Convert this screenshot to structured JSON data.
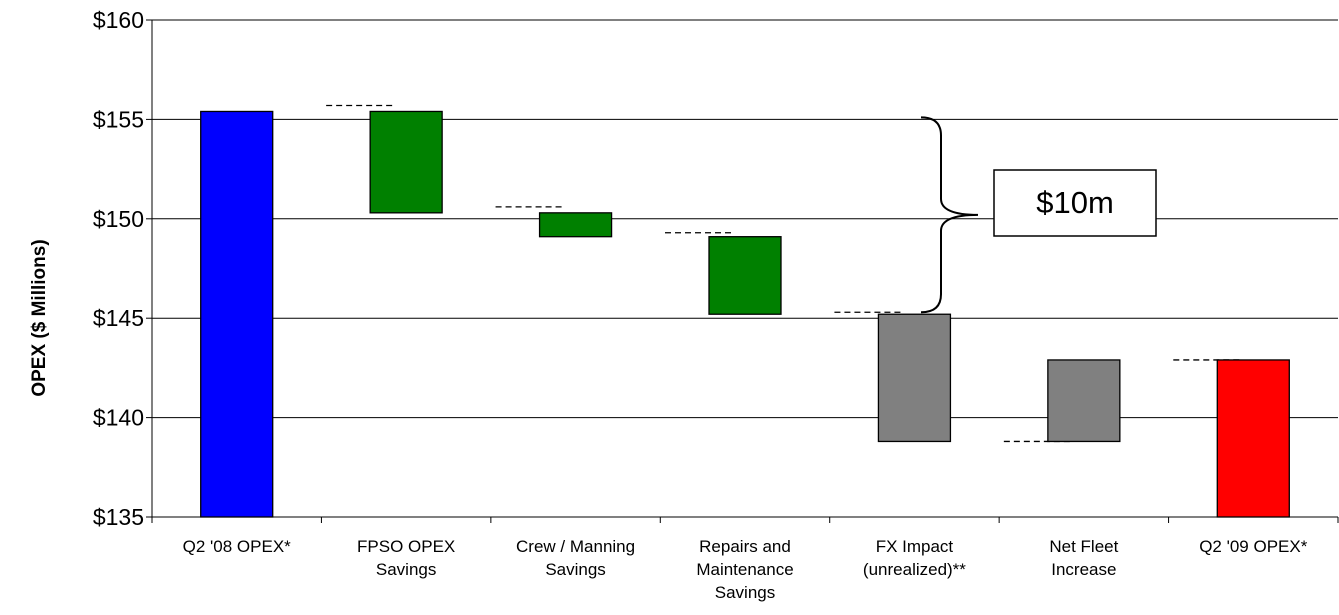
{
  "chart_data": {
    "type": "bar",
    "subtype": "waterfall",
    "title": "",
    "xlabel": "",
    "ylabel": "OPEX ($ Millions)",
    "ylim": [
      135,
      160
    ],
    "ytick_values": [
      135,
      140,
      145,
      150,
      155,
      160
    ],
    "ytick_labels": [
      "$135",
      "$140",
      "$145",
      "$150",
      "$155",
      "$160"
    ],
    "grid": true,
    "categories": [
      [
        "Q2 '08 OPEX*"
      ],
      [
        "FPSO OPEX",
        "Savings"
      ],
      [
        "Crew / Manning",
        "Savings"
      ],
      [
        "Repairs and",
        "Maintenance",
        "Savings"
      ],
      [
        "FX Impact",
        "(unrealized)**"
      ],
      [
        "Net Fleet",
        "Increase"
      ],
      [
        "Q2 '09 OPEX*"
      ]
    ],
    "bars": [
      {
        "kind": "total",
        "bottom": 135,
        "top": 155.4,
        "color": "#0000ff"
      },
      {
        "kind": "change",
        "bottom": 150.3,
        "top": 155.4,
        "color": "#008000"
      },
      {
        "kind": "change",
        "bottom": 149.1,
        "top": 150.3,
        "color": "#008000"
      },
      {
        "kind": "change",
        "bottom": 145.2,
        "top": 149.1,
        "color": "#008000"
      },
      {
        "kind": "change",
        "bottom": 138.8,
        "top": 145.2,
        "color": "#808080"
      },
      {
        "kind": "change",
        "bottom": 138.8,
        "top": 142.9,
        "color": "#808080"
      },
      {
        "kind": "total",
        "bottom": 135,
        "top": 142.9,
        "color": "#ff0000"
      }
    ],
    "connectors": [
      {
        "slot": 1,
        "y": 155.7
      },
      {
        "slot": 2,
        "y": 150.6
      },
      {
        "slot": 3,
        "y": 149.3
      },
      {
        "slot": 4,
        "y": 145.3
      },
      {
        "slot": 5,
        "y": 138.8
      },
      {
        "slot": 6,
        "y": 142.9
      }
    ],
    "annotation": {
      "text": "$10m",
      "brace_from": 155.1,
      "brace_to": 145.3
    }
  }
}
